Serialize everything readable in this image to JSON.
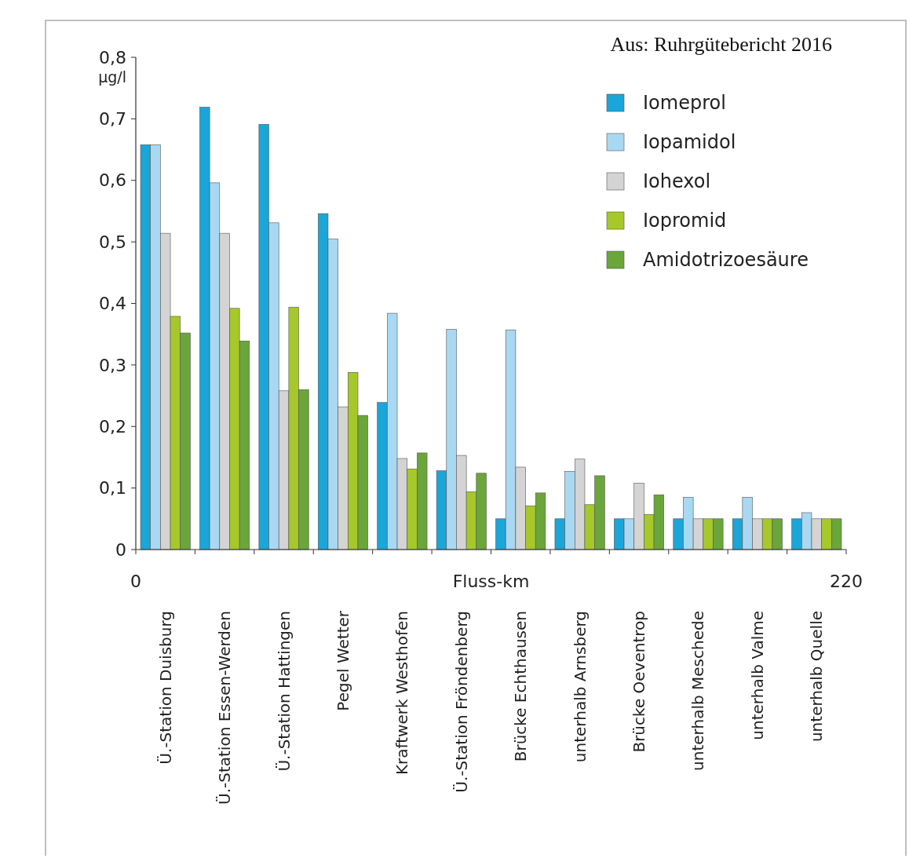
{
  "chart_data": {
    "type": "bar",
    "ylabel": "µg/l",
    "xlabel": "Fluss-km",
    "annotations": [
      "Aus: Ruhrgütebericht 2016",
      "0",
      "220"
    ],
    "categories": [
      "Ü.-Station Duisburg",
      "Ü.-Station Essen-Werden",
      "Ü.-Station Hattingen",
      "Pegel Wetter",
      "Kraftwerk Westhofen",
      "Ü.-Station Fröndenberg",
      "Brücke Echthausen",
      "unterhalb Arnsberg",
      "Brücke Oeventrop",
      "unterhalb Meschede",
      "unterhalb Valme",
      "unterhalb Quelle"
    ],
    "series": [
      {
        "name": "Iomeprol",
        "color": "#1aa6d8",
        "values": [
          0.658,
          0.719,
          0.691,
          0.546,
          0.239,
          0.128,
          0.05,
          0.05,
          0.05,
          0.05,
          0.05,
          0.05
        ]
      },
      {
        "name": "Iopamidol",
        "color": "#a9d8f2",
        "values": [
          0.658,
          0.596,
          0.531,
          0.505,
          0.384,
          0.358,
          0.357,
          0.127,
          0.05,
          0.085,
          0.085,
          0.06
        ]
      },
      {
        "name": "Iohexol",
        "color": "#d4d4d4",
        "values": [
          0.514,
          0.514,
          0.258,
          0.232,
          0.148,
          0.153,
          0.134,
          0.147,
          0.108,
          0.05,
          0.05,
          0.05
        ]
      },
      {
        "name": "Iopromid",
        "color": "#a6c82a",
        "values": [
          0.379,
          0.392,
          0.394,
          0.288,
          0.131,
          0.094,
          0.071,
          0.073,
          0.057,
          0.05,
          0.05,
          0.05
        ]
      },
      {
        "name": "Amidotrizoesäure",
        "color": "#6aa63a",
        "values": [
          0.352,
          0.339,
          0.26,
          0.218,
          0.157,
          0.124,
          0.092,
          0.12,
          0.089,
          0.05,
          0.05,
          0.05
        ]
      }
    ],
    "ylim": [
      0,
      0.8
    ],
    "yticks": [
      {
        "value": 0,
        "label": "0"
      },
      {
        "value": 0.1,
        "label": "0,1"
      },
      {
        "value": 0.2,
        "label": "0,2"
      },
      {
        "value": 0.3,
        "label": "0,3"
      },
      {
        "value": 0.4,
        "label": "0,4"
      },
      {
        "value": 0.5,
        "label": "0,5"
      },
      {
        "value": 0.6,
        "label": "0,6"
      },
      {
        "value": 0.7,
        "label": "0,7"
      },
      {
        "value": 0.8,
        "label": "0,8"
      }
    ],
    "grid": false,
    "legend": "top right"
  }
}
